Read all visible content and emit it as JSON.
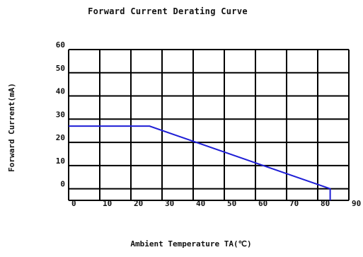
{
  "chart_data": {
    "type": "line",
    "title": "Forward Current Derating Curve",
    "xlabel": "Ambient Temperature TA(℃)",
    "ylabel": "Forward Current(mA)",
    "xlim": [
      0,
      90
    ],
    "ylim": [
      -5,
      60
    ],
    "x_ticks": [
      "0",
      "10",
      "20",
      "30",
      "40",
      "50",
      "60",
      "70",
      "80",
      "90"
    ],
    "y_ticks": [
      "0",
      "10",
      "20",
      "30",
      "40",
      "50",
      "60"
    ],
    "grid": true,
    "series": [
      {
        "color": "#1f1fd6",
        "points": [
          [
            0,
            27
          ],
          [
            26,
            27
          ],
          [
            84,
            0
          ],
          [
            84,
            -5
          ]
        ]
      }
    ]
  }
}
